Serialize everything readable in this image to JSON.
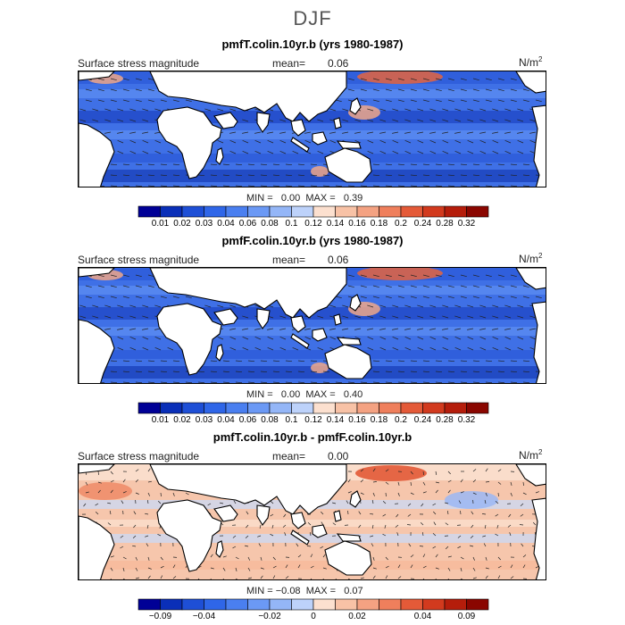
{
  "main_title": "DJF",
  "units": "N/m",
  "units_exp": "2",
  "field_label": "Surface stress magnitude",
  "mean_label": "mean=",
  "min_label": "MIN =",
  "max_label": "MAX =",
  "colors": {
    "ocean_abs": "#3f70e6",
    "ocean_diff": "#f6c6ac",
    "land": "#ffffff"
  },
  "panels": [
    {
      "title": "pmfT.colin.10yr.b (yrs 1980-1987)",
      "mean": "0.06",
      "min": "0.00",
      "max": "0.39"
    },
    {
      "title": "pmfF.colin.10yr.b (yrs 1980-1987)",
      "mean": "0.06",
      "min": "0.00",
      "max": "0.40"
    },
    {
      "title": "pmfT.colin.10yr.b - pmfF.colin.10yr.b",
      "mean": "0.00",
      "min": "−0.08",
      "max": "0.07"
    }
  ],
  "colorbars": {
    "absolute": {
      "labels": [
        "0.01",
        "0.02",
        "0.03",
        "0.04",
        "0.06",
        "0.08",
        "0.1",
        "0.12",
        "0.14",
        "0.16",
        "0.18",
        "0.2",
        "0.24",
        "0.28",
        "0.32"
      ],
      "colors": [
        "#000096",
        "#0a2fb8",
        "#1e4fd6",
        "#2f66e8",
        "#4a7ff0",
        "#6b99f5",
        "#94b6f7",
        "#bdd2fa",
        "#fce0cf",
        "#f8c2a6",
        "#f4a282",
        "#ef7f5c",
        "#e45a38",
        "#d23a1e",
        "#b51d0b",
        "#8a0600"
      ]
    },
    "difference": {
      "labels": [
        "−0.09",
        "−0.04",
        "−0.02",
        "0",
        "0.02",
        "0.04",
        "0.09"
      ],
      "colors": [
        "#000096",
        "#0a2fb8",
        "#1e4fd6",
        "#2f66e8",
        "#4a7ff0",
        "#6b99f5",
        "#94b6f7",
        "#bdd2fa",
        "#fce0cf",
        "#f8c2a6",
        "#f4a282",
        "#ef7f5c",
        "#e45a38",
        "#d23a1e",
        "#b51d0b",
        "#8a0600"
      ]
    }
  },
  "chart_data": [
    {
      "type": "heatmap",
      "title": "pmfT.colin.10yr.b (yrs 1980-1987)",
      "field": "Surface stress magnitude",
      "units": "N/m^2",
      "mean": 0.06,
      "min": 0.0,
      "max": 0.39,
      "levels": [
        0.01,
        0.02,
        0.03,
        0.04,
        0.06,
        0.08,
        0.1,
        0.12,
        0.14,
        0.16,
        0.18,
        0.2,
        0.24,
        0.28,
        0.32
      ]
    },
    {
      "type": "heatmap",
      "title": "pmfF.colin.10yr.b (yrs 1980-1987)",
      "field": "Surface stress magnitude",
      "units": "N/m^2",
      "mean": 0.06,
      "min": 0.0,
      "max": 0.4,
      "levels": [
        0.01,
        0.02,
        0.03,
        0.04,
        0.06,
        0.08,
        0.1,
        0.12,
        0.14,
        0.16,
        0.18,
        0.2,
        0.24,
        0.28,
        0.32
      ]
    },
    {
      "type": "heatmap",
      "title": "pmfT.colin.10yr.b - pmfF.colin.10yr.b",
      "field": "Surface stress magnitude",
      "units": "N/m^2",
      "mean": 0.0,
      "min": -0.08,
      "max": 0.07,
      "levels": [
        -0.09,
        -0.04,
        -0.02,
        0,
        0.02,
        0.04,
        0.09
      ]
    }
  ]
}
